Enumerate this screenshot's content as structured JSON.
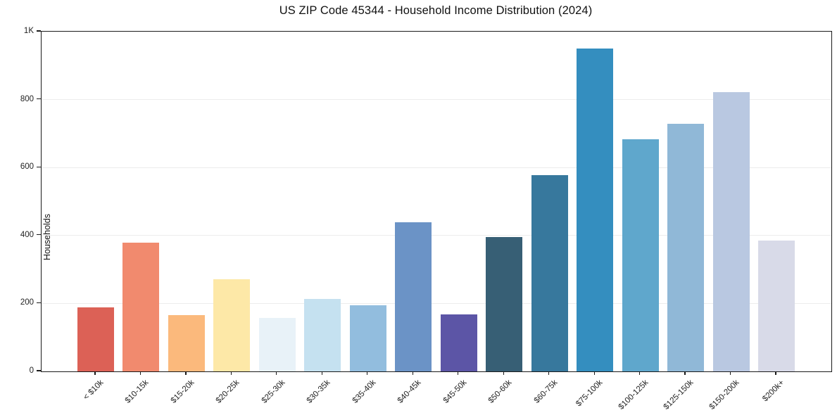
{
  "title": "US ZIP Code 45344 - Household Income Distribution (2024)",
  "chart_data": {
    "type": "bar",
    "title": "US ZIP Code 45344 - Household Income Distribution (2024)",
    "xlabel": "",
    "ylabel": "Households",
    "categories": [
      "< $10k",
      "$10-15k",
      "$15-20k",
      "$20-25k",
      "$25-30k",
      "$30-35k",
      "$35-40k",
      "$40-45k",
      "$45-50k",
      "$50-60k",
      "$60-75k",
      "$75-100k",
      "$100-125k",
      "$125-150k",
      "$150-200k",
      "$200k+"
    ],
    "values": [
      188,
      378,
      165,
      271,
      158,
      213,
      195,
      440,
      168,
      395,
      577,
      951,
      683,
      728,
      822,
      385
    ],
    "bar_colors": [
      "#dc6156",
      "#f18a6e",
      "#fbb97c",
      "#fde8a7",
      "#e8f2f8",
      "#c5e1f0",
      "#92bdde",
      "#6b93c6",
      "#5c55a6",
      "#375f75",
      "#37789d",
      "#348ebf",
      "#5fa7cc",
      "#90b8d7",
      "#b9c8e1",
      "#d8dae8"
    ],
    "ylim": [
      0,
      1000
    ],
    "ytick_values": [
      0,
      200,
      400,
      600,
      800,
      1000
    ],
    "ytick_labels": [
      "0",
      "200",
      "400",
      "600",
      "800",
      "1K"
    ],
    "grid": "horizontal",
    "gridline_values": [
      200,
      400,
      600,
      800
    ],
    "legend": "none",
    "background_color": "#ffffff",
    "spine_color": "#1a1a1a",
    "grid_color": "#ececec",
    "xtick_rotation_deg": 45
  }
}
